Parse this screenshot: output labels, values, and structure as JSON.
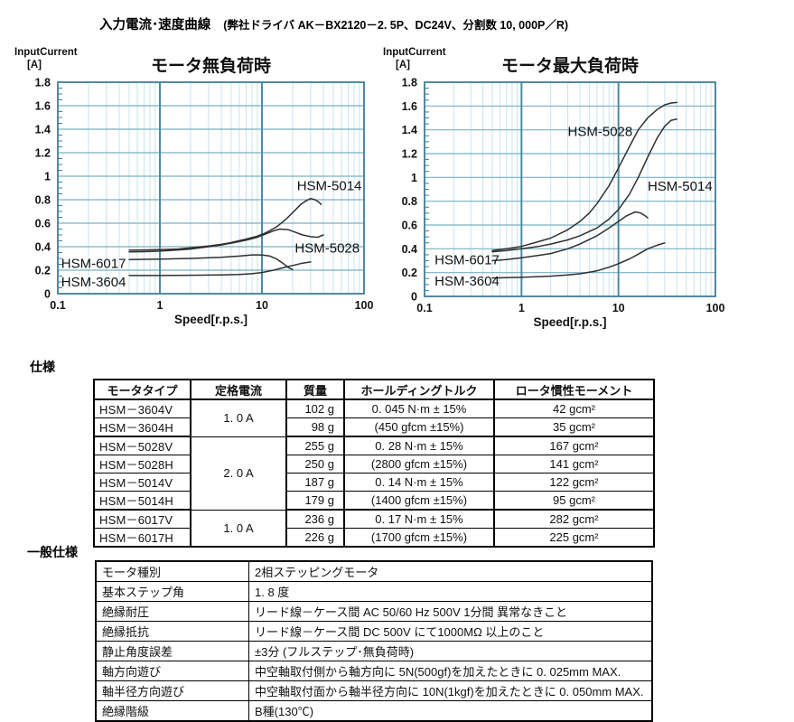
{
  "page": {
    "title": "入力電流･速度曲線",
    "subtitle": "(弊社ドライバ AK－BX2120－2. 5P、DC24V、分割数 10, 000P／R)"
  },
  "sections": {
    "spec_heading": "仕様",
    "general_heading": "一般仕様"
  },
  "colors": {
    "grid_minor": "#c9e3ec",
    "grid_major": "#79b0c4",
    "grid_decade": "#4f8ca3",
    "frame": "#3f7e95",
    "curve": "#2f2f2f",
    "text": "#111111"
  },
  "chart_data": [
    {
      "type": "line",
      "title": "モータ無負荷時",
      "ylabel": "InputCurrent",
      "ylabel_unit": "[A]",
      "xlabel": "Speed[r.p.s.]",
      "x_scale": "log",
      "xlim": [
        0.1,
        100
      ],
      "ylim": [
        0,
        1.8
      ],
      "x_ticks": [
        0.1,
        1,
        10,
        100
      ],
      "x_tick_labels": [
        "0.1",
        "1",
        "10",
        "100"
      ],
      "y_ticks": [
        0,
        0.2,
        0.4,
        0.6,
        0.8,
        1,
        1.2,
        1.4,
        1.6,
        1.8
      ],
      "y_tick_labels": [
        "0",
        "0.2",
        "0.4",
        "0.6",
        "0.8",
        "1",
        "1.2",
        "1.4",
        "1.6",
        "1.8"
      ],
      "grid": true,
      "legend_position": "inline-labels",
      "series": [
        {
          "name": "HSM-5014",
          "x": [
            0.5,
            0.7,
            1,
            1.5,
            2,
            3,
            4,
            5,
            7,
            9,
            11,
            14,
            17,
            20,
            24,
            27,
            30,
            33,
            36,
            38
          ],
          "y": [
            0.37,
            0.372,
            0.375,
            0.38,
            0.39,
            0.405,
            0.42,
            0.435,
            0.465,
            0.49,
            0.52,
            0.57,
            0.63,
            0.69,
            0.76,
            0.79,
            0.81,
            0.8,
            0.78,
            0.76
          ]
        },
        {
          "name": "HSM-5028",
          "x": [
            0.5,
            0.7,
            1,
            1.5,
            2,
            3,
            4,
            5,
            7,
            9,
            11,
            13,
            15,
            18,
            21,
            25,
            30,
            35,
            40
          ],
          "y": [
            0.355,
            0.358,
            0.362,
            0.372,
            0.38,
            0.4,
            0.415,
            0.43,
            0.455,
            0.48,
            0.51,
            0.535,
            0.55,
            0.545,
            0.525,
            0.5,
            0.485,
            0.48,
            0.5
          ]
        },
        {
          "name": "HSM-6017",
          "x": [
            0.5,
            0.7,
            1,
            2,
            3,
            4,
            6,
            8,
            10,
            12,
            14,
            16,
            18,
            20
          ],
          "y": [
            0.29,
            0.292,
            0.295,
            0.3,
            0.305,
            0.31,
            0.32,
            0.33,
            0.33,
            0.32,
            0.295,
            0.26,
            0.225,
            0.205
          ]
        },
        {
          "name": "HSM-3604",
          "x": [
            0.5,
            1,
            2,
            4,
            6,
            8,
            10,
            13,
            16,
            20,
            25,
            30
          ],
          "y": [
            0.155,
            0.155,
            0.157,
            0.16,
            0.163,
            0.17,
            0.18,
            0.2,
            0.22,
            0.24,
            0.26,
            0.27
          ]
        }
      ],
      "labels": [
        {
          "text": "HSM-5014",
          "x": 22,
          "y": 0.88
        },
        {
          "text": "HSM-5028",
          "x": 21,
          "y": 0.35
        },
        {
          "text": "HSM-6017",
          "x": 0.108,
          "y": 0.22
        },
        {
          "text": "HSM-3604",
          "x": 0.108,
          "y": 0.06
        }
      ]
    },
    {
      "type": "line",
      "title": "モータ最大負荷時",
      "ylabel": "InputCurrent",
      "ylabel_unit": "[A]",
      "xlabel": "Speed[r.p.s.]",
      "x_scale": "log",
      "xlim": [
        0.1,
        100
      ],
      "ylim": [
        0,
        1.8
      ],
      "x_ticks": [
        0.1,
        1,
        10,
        100
      ],
      "x_tick_labels": [
        "0.1",
        "1",
        "10",
        "100"
      ],
      "y_ticks": [
        0,
        0.2,
        0.4,
        0.6,
        0.8,
        1,
        1.2,
        1.4,
        1.6,
        1.8
      ],
      "y_tick_labels": [
        "0",
        "0.2",
        "0.4",
        "0.6",
        "0.8",
        "1",
        "1.2",
        "1.4",
        "1.6",
        "1.8"
      ],
      "grid": true,
      "legend_position": "inline-labels",
      "series": [
        {
          "name": "HSM-5028",
          "x": [
            0.5,
            0.7,
            1,
            1.5,
            2,
            3,
            4,
            5,
            6,
            8,
            10,
            13,
            16,
            20,
            25,
            30,
            35,
            40
          ],
          "y": [
            0.385,
            0.4,
            0.42,
            0.46,
            0.49,
            0.56,
            0.63,
            0.7,
            0.78,
            0.93,
            1.08,
            1.26,
            1.4,
            1.5,
            1.57,
            1.61,
            1.625,
            1.63
          ]
        },
        {
          "name": "HSM-5014",
          "x": [
            0.5,
            0.7,
            1,
            1.5,
            2,
            3,
            4,
            6,
            8,
            10,
            13,
            16,
            20,
            25,
            30,
            35,
            40
          ],
          "y": [
            0.375,
            0.385,
            0.4,
            0.42,
            0.44,
            0.475,
            0.51,
            0.575,
            0.65,
            0.73,
            0.86,
            1.0,
            1.17,
            1.33,
            1.43,
            1.48,
            1.49
          ]
        },
        {
          "name": "HSM-6017",
          "x": [
            0.5,
            0.7,
            1,
            1.5,
            2,
            3,
            4,
            6,
            8,
            10,
            12,
            14,
            15,
            17,
            19,
            20
          ],
          "y": [
            0.3,
            0.31,
            0.325,
            0.345,
            0.36,
            0.4,
            0.44,
            0.51,
            0.575,
            0.63,
            0.675,
            0.7,
            0.71,
            0.7,
            0.675,
            0.66
          ]
        },
        {
          "name": "HSM-3604",
          "x": [
            0.5,
            1,
            2,
            3,
            4,
            6,
            8,
            10,
            13,
            16,
            20,
            25,
            30
          ],
          "y": [
            0.155,
            0.16,
            0.17,
            0.18,
            0.19,
            0.215,
            0.245,
            0.275,
            0.315,
            0.355,
            0.4,
            0.43,
            0.45
          ]
        }
      ],
      "labels": [
        {
          "text": "HSM-5028",
          "x": 3.0,
          "y": 1.35
        },
        {
          "text": "HSM-5014",
          "x": 20,
          "y": 0.89
        },
        {
          "text": "HSM-6017",
          "x": 0.127,
          "y": 0.27
        },
        {
          "text": "HSM-3604",
          "x": 0.127,
          "y": 0.09
        }
      ]
    }
  ],
  "spec_table": {
    "headers": [
      "モータタイプ",
      "定格電流",
      "質量",
      "ホールディングトルク",
      "ロータ慣性モーメント"
    ],
    "current_groups": [
      {
        "label": "1. 0 A",
        "rows": 2
      },
      {
        "label": "2. 0 A",
        "rows": 4
      },
      {
        "label": "1. 0 A",
        "rows": 2
      }
    ],
    "rows": [
      {
        "type": "HSM－3604V",
        "mass": "102 g",
        "torque": "0. 045 N·m ± 15%",
        "inertia": "42 gcm²"
      },
      {
        "type": "HSM－3604H",
        "mass": "98 g",
        "torque": "(450 gfcm ±15%)",
        "inertia": "35 gcm²"
      },
      {
        "type": "HSM－5028V",
        "mass": "255 g",
        "torque": "0. 28 N·m ± 15%",
        "inertia": "167 gcm²"
      },
      {
        "type": "HSM－5028H",
        "mass": "250 g",
        "torque": "(2800 gfcm ±15%)",
        "inertia": "141 gcm²"
      },
      {
        "type": "HSM－5014V",
        "mass": "187 g",
        "torque": "0. 14 N·m ± 15%",
        "inertia": "122 gcm²"
      },
      {
        "type": "HSM－5014H",
        "mass": "179 g",
        "torque": "(1400 gfcm ±15%)",
        "inertia": "95 gcm²"
      },
      {
        "type": "HSM－6017V",
        "mass": "236 g",
        "torque": "0. 17 N·m ± 15%",
        "inertia": "282 gcm²"
      },
      {
        "type": "HSM－6017H",
        "mass": "226 g",
        "torque": "(1700 gfcm ±15%)",
        "inertia": "225 gcm²"
      }
    ]
  },
  "general_table": {
    "rows": [
      {
        "label": "モータ種別",
        "value": "2相ステッピングモータ"
      },
      {
        "label": "基本ステップ角",
        "value": "1. 8 度"
      },
      {
        "label": "絶縁耐圧",
        "value": "リード線－ケース間 AC 50/60 Hz 500V 1分間 異常なきこと"
      },
      {
        "label": "絶縁抵抗",
        "value": "リード線－ケース間 DC 500V にて1000MΩ 以上のこと"
      },
      {
        "label": "静止角度誤差",
        "value": "±3分 (フルステップ･無負荷時)"
      },
      {
        "label": "軸方向遊び",
        "value": "中空軸取付側から軸方向に 5N(500gf)を加えたときに 0. 025mm  MAX."
      },
      {
        "label": "軸半径方向遊び",
        "value": "中空軸取付面から軸半径方向に 10N(1kgf)を加えたときに 0. 050mm  MAX."
      },
      {
        "label": "絶縁階級",
        "value": "B種(130℃)"
      }
    ]
  }
}
